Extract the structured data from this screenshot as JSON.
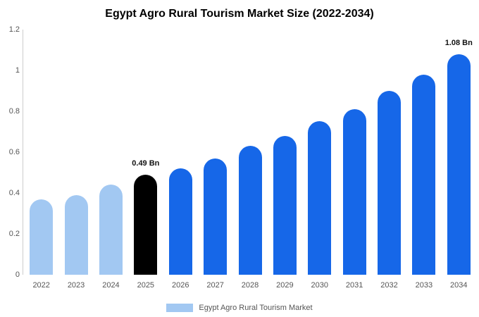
{
  "title": "Egypt Agro Rural Tourism Market Size (2022-2034)",
  "legend": {
    "label": "Egypt Agro Rural Tourism Market"
  },
  "colors": {
    "historical": "#a2c8f2",
    "highlight": "#000000",
    "forecast": "#1667e8",
    "axis_line": "#cccccc",
    "tick_text": "#555555",
    "annotation_text": "#111111",
    "legend_swatch": "#a2c8f2",
    "legend_text": "#555555"
  },
  "chart_data": {
    "type": "bar",
    "title": "Egypt Agro Rural Tourism Market Size (2022-2034)",
    "unit": "Bn",
    "categories": [
      "2022",
      "2023",
      "2024",
      "2025",
      "2026",
      "2027",
      "2028",
      "2029",
      "2030",
      "2031",
      "2032",
      "2033",
      "2034"
    ],
    "values": [
      0.37,
      0.39,
      0.44,
      0.49,
      0.52,
      0.57,
      0.63,
      0.68,
      0.75,
      0.81,
      0.9,
      0.98,
      1.08
    ],
    "bar_color_roles": [
      "historical",
      "historical",
      "historical",
      "highlight",
      "forecast",
      "forecast",
      "forecast",
      "forecast",
      "forecast",
      "forecast",
      "forecast",
      "forecast",
      "forecast"
    ],
    "annotations": [
      {
        "category": "2025",
        "index": 3,
        "text": "0.49 Bn"
      },
      {
        "category": "2034",
        "index": 12,
        "text": "1.08 Bn"
      }
    ],
    "xlabel": "",
    "ylabel": "",
    "ylim": [
      0,
      1.2
    ],
    "yticks": [
      0,
      0.2,
      0.4,
      0.6,
      0.8,
      1,
      1.2
    ],
    "ytick_labels": [
      "0",
      "0.2",
      "0.4",
      "0.6",
      "0.8",
      "1",
      "1.2"
    ],
    "grid": false,
    "legend_position": "bottom",
    "legend_entries": [
      "Egypt Agro Rural Tourism Market"
    ]
  }
}
